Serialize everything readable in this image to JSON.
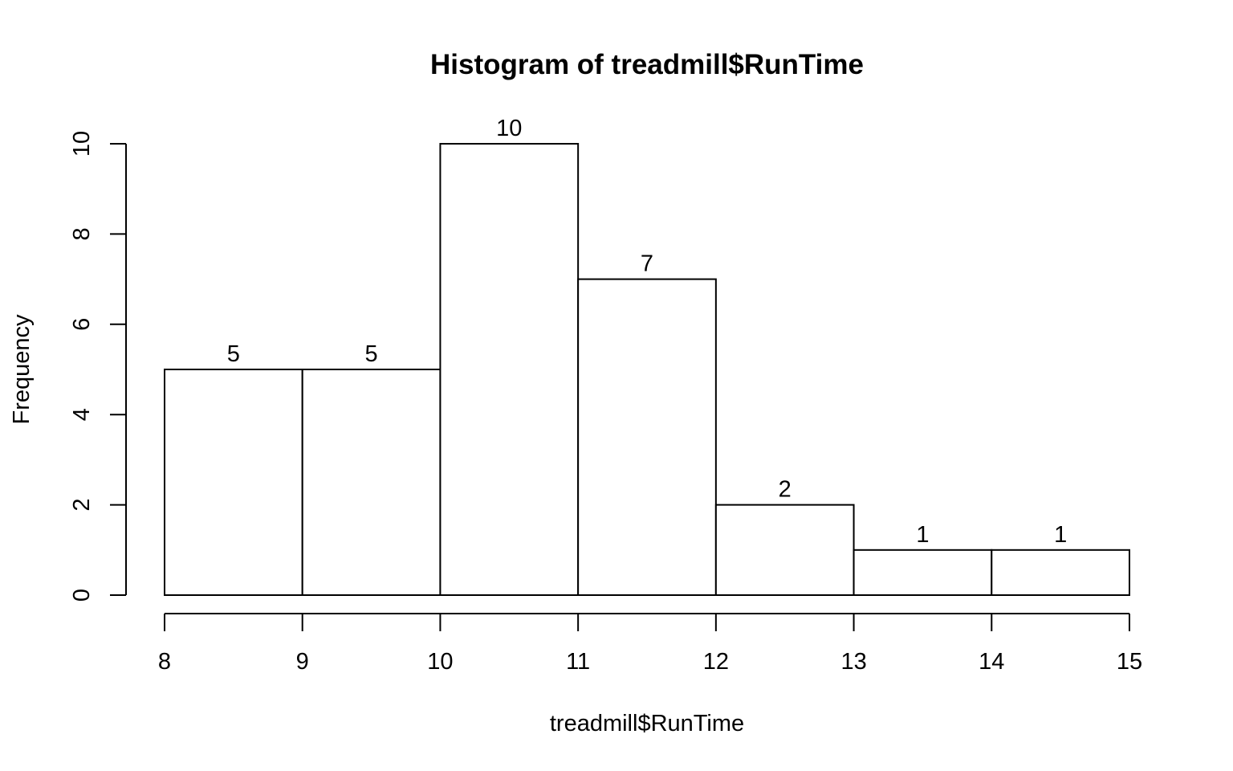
{
  "chart_data": {
    "type": "bar",
    "title": "Histogram of treadmill$RunTime",
    "xlabel": "treadmill$RunTime",
    "ylabel": "Frequency",
    "breaks": [
      8,
      9,
      10,
      11,
      12,
      13,
      14,
      15
    ],
    "counts": [
      5,
      5,
      10,
      7,
      2,
      1,
      1
    ],
    "labels": [
      "5",
      "5",
      "10",
      "7",
      "2",
      "1",
      "1"
    ],
    "xlim": [
      8,
      15
    ],
    "ylim": [
      0,
      10
    ],
    "x_ticks": [
      8,
      9,
      10,
      11,
      12,
      13,
      14,
      15
    ],
    "y_ticks": [
      0,
      2,
      4,
      6,
      8,
      10
    ],
    "grid": false,
    "legend": "none"
  }
}
